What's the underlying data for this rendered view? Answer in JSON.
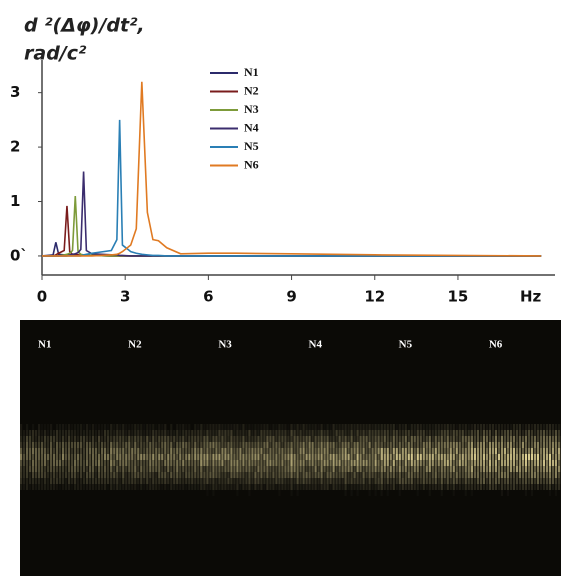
{
  "chart_data": {
    "type": "line",
    "title": [
      "d ²(Δφ)/dt²,",
      "rad/c²"
    ],
    "x_label": "Hz",
    "x": [
      0,
      0.4,
      0.5,
      0.6,
      0.8,
      0.9,
      1.0,
      1.1,
      1.2,
      1.3,
      1.4,
      1.5,
      1.6,
      1.8,
      2.5,
      2.7,
      2.8,
      2.9,
      3.2,
      3.4,
      3.6,
      3.8,
      4.0,
      4.2,
      4.5,
      5,
      6,
      7,
      9,
      12,
      18
    ],
    "series": [
      {
        "name": "N1",
        "color": "#2b2a6b",
        "values": [
          0,
          0.02,
          0.25,
          0.03,
          0.02,
          0.02,
          0.01,
          0.01,
          0.01,
          0.01,
          0.01,
          0.01,
          0.01,
          0.01,
          0,
          0,
          0,
          0,
          0,
          0,
          0,
          0,
          0,
          0,
          0,
          0,
          0,
          0,
          0,
          0,
          0
        ]
      },
      {
        "name": "N2",
        "color": "#7a1c1c",
        "values": [
          0,
          0,
          0.02,
          0.05,
          0.1,
          0.92,
          0.08,
          0.03,
          0.02,
          0.02,
          0.01,
          0.01,
          0.01,
          0.01,
          0,
          0,
          0,
          0,
          0,
          0,
          0,
          0,
          0,
          0,
          0,
          0,
          0,
          0,
          0,
          0,
          0
        ]
      },
      {
        "name": "N3",
        "color": "#7d9b3a",
        "values": [
          0,
          0,
          0,
          0,
          0.02,
          0.03,
          0.05,
          0.1,
          1.1,
          0.08,
          0.03,
          0.02,
          0.01,
          0.01,
          0,
          0,
          0,
          0,
          0,
          0,
          0,
          0,
          0,
          0,
          0,
          0,
          0,
          0,
          0,
          0,
          0
        ]
      },
      {
        "name": "N4",
        "color": "#3b2d6e",
        "values": [
          0,
          0,
          0,
          0,
          0,
          0,
          0.02,
          0.03,
          0.04,
          0.06,
          0.12,
          1.55,
          0.1,
          0.04,
          0.02,
          0.02,
          0.01,
          0.01,
          0,
          0,
          0,
          0,
          0,
          0,
          0,
          0,
          0,
          0,
          0,
          0,
          0
        ]
      },
      {
        "name": "N5",
        "color": "#2a7fb5",
        "values": [
          0,
          0,
          0,
          0,
          0,
          0,
          0,
          0,
          0,
          0,
          0,
          0.02,
          0.03,
          0.05,
          0.1,
          0.3,
          2.5,
          0.2,
          0.08,
          0.05,
          0.03,
          0.02,
          0.01,
          0.01,
          0,
          0,
          0,
          0,
          0,
          0,
          0
        ]
      },
      {
        "name": "N6",
        "color": "#e07a22",
        "values": [
          0,
          0,
          0,
          0,
          0,
          0,
          0,
          0,
          0,
          0,
          0,
          0,
          0,
          0,
          0.02,
          0.03,
          0.05,
          0.08,
          0.2,
          0.5,
          3.2,
          0.8,
          0.3,
          0.28,
          0.15,
          0.04,
          0.05,
          0.05,
          0.04,
          0.02,
          0
        ]
      }
    ],
    "xlim": [
      0,
      18.5
    ],
    "xticks": [
      0,
      3,
      6,
      9,
      12,
      15
    ],
    "ylim": [
      -0.35,
      3.6
    ],
    "yticks": [
      {
        "value": 0,
        "label": "0`"
      },
      1,
      2,
      3
    ]
  }
}
